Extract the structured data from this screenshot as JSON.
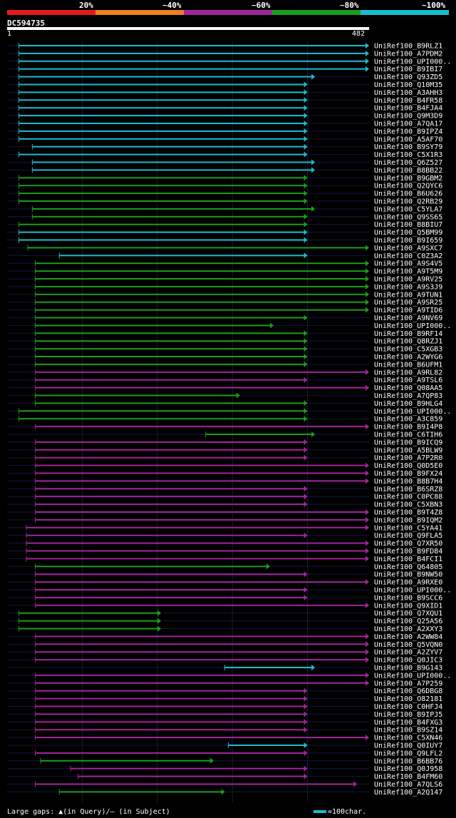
{
  "colors": {
    "red": "#e41a1c",
    "orange": "#f07f19",
    "purple": "#a0269b",
    "green": "#1a9e1a",
    "cyan": "#17becf"
  },
  "legend": {
    "labels": [
      "20%",
      "~40%",
      "~60%",
      "~80%",
      "~100%"
    ],
    "colors": [
      "red",
      "orange",
      "purple",
      "green",
      "cyan"
    ]
  },
  "query": {
    "title": "DC594735",
    "start_label": "1",
    "end_label": "482"
  },
  "footer": {
    "gaps_text": "Large gaps: ▲(in Query)/– (in Subject)",
    "scale_text": "=100char."
  },
  "chart_data": {
    "type": "alignment-overview",
    "query_length": 482,
    "hits": [
      {
        "name": "UniRef100_B9RLZ1",
        "start": 16,
        "end": 482,
        "color": "cyan"
      },
      {
        "name": "UniRef100_A7PDM2",
        "start": 16,
        "end": 482,
        "color": "cyan"
      },
      {
        "name": "UniRef100_UPI000..",
        "start": 16,
        "end": 482,
        "color": "cyan"
      },
      {
        "name": "UniRef100_B9IBI7",
        "start": 16,
        "end": 482,
        "color": "cyan"
      },
      {
        "name": "UniRef100_Q93ZD5",
        "start": 16,
        "end": 410,
        "color": "cyan"
      },
      {
        "name": "UniRef100_Q10M35",
        "start": 16,
        "end": 400,
        "color": "cyan"
      },
      {
        "name": "UniRef100_A3AHH3",
        "start": 16,
        "end": 400,
        "color": "cyan"
      },
      {
        "name": "UniRef100_B4FR58",
        "start": 16,
        "end": 400,
        "color": "cyan"
      },
      {
        "name": "UniRef100_B4FJA4",
        "start": 16,
        "end": 400,
        "color": "cyan"
      },
      {
        "name": "UniRef100_Q9M3D9",
        "start": 16,
        "end": 400,
        "color": "cyan"
      },
      {
        "name": "UniRef100_A7QA17",
        "start": 16,
        "end": 400,
        "color": "cyan"
      },
      {
        "name": "UniRef100_B9IPZ4",
        "start": 16,
        "end": 400,
        "color": "cyan"
      },
      {
        "name": "UniRef100_A5AF70",
        "start": 16,
        "end": 400,
        "color": "cyan"
      },
      {
        "name": "UniRef100_B9SY79",
        "start": 34,
        "end": 400,
        "color": "cyan"
      },
      {
        "name": "UniRef100_C5X1R3",
        "start": 16,
        "end": 400,
        "color": "cyan"
      },
      {
        "name": "UniRef100_Q6Z527",
        "start": 34,
        "end": 410,
        "color": "cyan"
      },
      {
        "name": "UniRef100_B8BB22",
        "start": 34,
        "end": 410,
        "color": "cyan"
      },
      {
        "name": "UniRef100_B9GBM2",
        "start": 16,
        "end": 400,
        "color": "green"
      },
      {
        "name": "UniRef100_Q2QYC6",
        "start": 16,
        "end": 400,
        "color": "green"
      },
      {
        "name": "UniRef100_B6U626",
        "start": 16,
        "end": 400,
        "color": "green"
      },
      {
        "name": "UniRef100_Q2RB29",
        "start": 16,
        "end": 400,
        "color": "green"
      },
      {
        "name": "UniRef100_C5YLA7",
        "start": 34,
        "end": 410,
        "color": "green"
      },
      {
        "name": "UniRef100_Q9SS65",
        "start": 34,
        "end": 400,
        "color": "green"
      },
      {
        "name": "UniRef100_B8BIU7",
        "start": 16,
        "end": 400,
        "color": "green"
      },
      {
        "name": "UniRef100_Q5BM99",
        "start": 16,
        "end": 400,
        "color": "cyan"
      },
      {
        "name": "UniRef100_B9I659",
        "start": 16,
        "end": 400,
        "color": "cyan"
      },
      {
        "name": "UniRef100_A9SXC7",
        "start": 28,
        "end": 482,
        "color": "green"
      },
      {
        "name": "UniRef100_C0Z3A2",
        "start": 70,
        "end": 400,
        "color": "cyan"
      },
      {
        "name": "UniRef100_A9S4V5",
        "start": 38,
        "end": 482,
        "color": "green"
      },
      {
        "name": "UniRef100_A9T5M9",
        "start": 38,
        "end": 482,
        "color": "green"
      },
      {
        "name": "UniRef100_A9RV25",
        "start": 38,
        "end": 482,
        "color": "green"
      },
      {
        "name": "UniRef100_A9S3J9",
        "start": 38,
        "end": 482,
        "color": "green"
      },
      {
        "name": "UniRef100_A9TUN1",
        "start": 38,
        "end": 482,
        "color": "green"
      },
      {
        "name": "UniRef100_A9SR25",
        "start": 38,
        "end": 482,
        "color": "green"
      },
      {
        "name": "UniRef100_A9TID6",
        "start": 38,
        "end": 482,
        "color": "green"
      },
      {
        "name": "UniRef100_A9NV69",
        "start": 38,
        "end": 400,
        "color": "green"
      },
      {
        "name": "UniRef100_UPI000..",
        "start": 38,
        "end": 355,
        "color": "green"
      },
      {
        "name": "UniRef100_B9RF14",
        "start": 38,
        "end": 400,
        "color": "green"
      },
      {
        "name": "UniRef100_Q8RZJ1",
        "start": 38,
        "end": 400,
        "color": "green"
      },
      {
        "name": "UniRef100_C5XGB3",
        "start": 38,
        "end": 400,
        "color": "green"
      },
      {
        "name": "UniRef100_A2WYG6",
        "start": 38,
        "end": 400,
        "color": "green"
      },
      {
        "name": "UniRef100_B6UFM1",
        "start": 38,
        "end": 400,
        "color": "green"
      },
      {
        "name": "UniRef100_A9RL82",
        "start": 38,
        "end": 482,
        "color": "purple"
      },
      {
        "name": "UniRef100_A9TSL6",
        "start": 38,
        "end": 400,
        "color": "purple"
      },
      {
        "name": "UniRef100_Q08AA5",
        "start": 38,
        "end": 482,
        "color": "purple"
      },
      {
        "name": "UniRef100_A7QP83",
        "start": 38,
        "end": 310,
        "color": "green"
      },
      {
        "name": "UniRef100_B9HLG4",
        "start": 38,
        "end": 400,
        "color": "green"
      },
      {
        "name": "UniRef100_UPI000..",
        "start": 16,
        "end": 400,
        "color": "green"
      },
      {
        "name": "UniRef100_A3C859",
        "start": 16,
        "end": 400,
        "color": "green"
      },
      {
        "name": "UniRef100_B9I4P8",
        "start": 38,
        "end": 482,
        "color": "purple"
      },
      {
        "name": "UniRef100_C6TIH6",
        "start": 265,
        "end": 410,
        "color": "green"
      },
      {
        "name": "UniRef100_B9ICQ9",
        "start": 38,
        "end": 400,
        "color": "purple"
      },
      {
        "name": "UniRef100_A5BLW9",
        "start": 38,
        "end": 400,
        "color": "purple"
      },
      {
        "name": "UniRef100_A7P2R0",
        "start": 38,
        "end": 400,
        "color": "purple"
      },
      {
        "name": "UniRef100_Q0D5E0",
        "start": 38,
        "end": 482,
        "color": "purple"
      },
      {
        "name": "UniRef100_B9FX24",
        "start": 38,
        "end": 482,
        "color": "purple"
      },
      {
        "name": "UniRef100_B8B7H4",
        "start": 38,
        "end": 482,
        "color": "purple"
      },
      {
        "name": "UniRef100_B6SRZ8",
        "start": 38,
        "end": 400,
        "color": "purple"
      },
      {
        "name": "UniRef100_C0PC88",
        "start": 38,
        "end": 400,
        "color": "purple"
      },
      {
        "name": "UniRef100_C5XBN3",
        "start": 38,
        "end": 400,
        "color": "purple"
      },
      {
        "name": "UniRef100_B9T4Z8",
        "start": 38,
        "end": 482,
        "color": "purple"
      },
      {
        "name": "UniRef100_B9IQM2",
        "start": 38,
        "end": 482,
        "color": "purple"
      },
      {
        "name": "UniRef100_C5YA41",
        "start": 26,
        "end": 482,
        "color": "purple"
      },
      {
        "name": "UniRef100_Q9FLA5",
        "start": 26,
        "end": 400,
        "color": "purple"
      },
      {
        "name": "UniRef100_Q7XR50",
        "start": 26,
        "end": 482,
        "color": "purple"
      },
      {
        "name": "UniRef100_B9FD84",
        "start": 26,
        "end": 482,
        "color": "purple"
      },
      {
        "name": "UniRef100_B4FCI1",
        "start": 26,
        "end": 482,
        "color": "purple"
      },
      {
        "name": "UniRef100_Q64805",
        "start": 38,
        "end": 350,
        "color": "green"
      },
      {
        "name": "UniRef100_B9NW50",
        "start": 38,
        "end": 400,
        "color": "purple"
      },
      {
        "name": "UniRef100_A9RXE0",
        "start": 38,
        "end": 482,
        "color": "purple"
      },
      {
        "name": "UniRef100_UPI000..",
        "start": 38,
        "end": 400,
        "color": "purple"
      },
      {
        "name": "UniRef100_B9SCC6",
        "start": 38,
        "end": 400,
        "color": "purple"
      },
      {
        "name": "UniRef100_Q9XID1",
        "start": 38,
        "end": 482,
        "color": "purple"
      },
      {
        "name": "UniRef100_Q7XQU1",
        "start": 16,
        "end": 205,
        "color": "green"
      },
      {
        "name": "UniRef100_Q25A56",
        "start": 16,
        "end": 205,
        "color": "green"
      },
      {
        "name": "UniRef100_A2XXY3",
        "start": 16,
        "end": 205,
        "color": "green"
      },
      {
        "name": "UniRef100_A2WW84",
        "start": 38,
        "end": 482,
        "color": "purple"
      },
      {
        "name": "UniRef100_Q5VQN0",
        "start": 38,
        "end": 482,
        "color": "purple"
      },
      {
        "name": "UniRef100_A2ZYV7",
        "start": 38,
        "end": 482,
        "color": "purple"
      },
      {
        "name": "UniRef100_Q0JIC3",
        "start": 38,
        "end": 482,
        "color": "purple"
      },
      {
        "name": "UniRef100_B9G143",
        "start": 290,
        "end": 410,
        "color": "cyan"
      },
      {
        "name": "UniRef100_UPI000..",
        "start": 38,
        "end": 482,
        "color": "purple"
      },
      {
        "name": "UniRef100_A7P259",
        "start": 38,
        "end": 482,
        "color": "purple"
      },
      {
        "name": "UniRef100_Q6DBG8",
        "start": 38,
        "end": 400,
        "color": "purple"
      },
      {
        "name": "UniRef100_O82181",
        "start": 38,
        "end": 400,
        "color": "purple"
      },
      {
        "name": "UniRef100_C0HFJ4",
        "start": 38,
        "end": 400,
        "color": "purple"
      },
      {
        "name": "UniRef100_B9IPJ5",
        "start": 38,
        "end": 400,
        "color": "purple"
      },
      {
        "name": "UniRef100_B4FXG3",
        "start": 38,
        "end": 400,
        "color": "purple"
      },
      {
        "name": "UniRef100_B9SZ14",
        "start": 38,
        "end": 400,
        "color": "purple"
      },
      {
        "name": "UniRef100_C5XN46",
        "start": 38,
        "end": 482,
        "color": "purple"
      },
      {
        "name": "UniRef100_Q0IUY7",
        "start": 295,
        "end": 400,
        "color": "cyan"
      },
      {
        "name": "UniRef100_Q9LFL2",
        "start": 38,
        "end": 400,
        "color": "purple"
      },
      {
        "name": "UniRef100_B6BB76",
        "start": 45,
        "end": 275,
        "color": "green"
      },
      {
        "name": "UniRef100_Q0J958",
        "start": 85,
        "end": 400,
        "color": "purple"
      },
      {
        "name": "UniRef100_B4FM60",
        "start": 95,
        "end": 400,
        "color": "purple"
      },
      {
        "name": "UniRef100_A7QLS6",
        "start": 38,
        "end": 466,
        "color": "purple"
      },
      {
        "name": "UniRef100_A2Q147",
        "start": 70,
        "end": 290,
        "color": "green"
      }
    ]
  }
}
